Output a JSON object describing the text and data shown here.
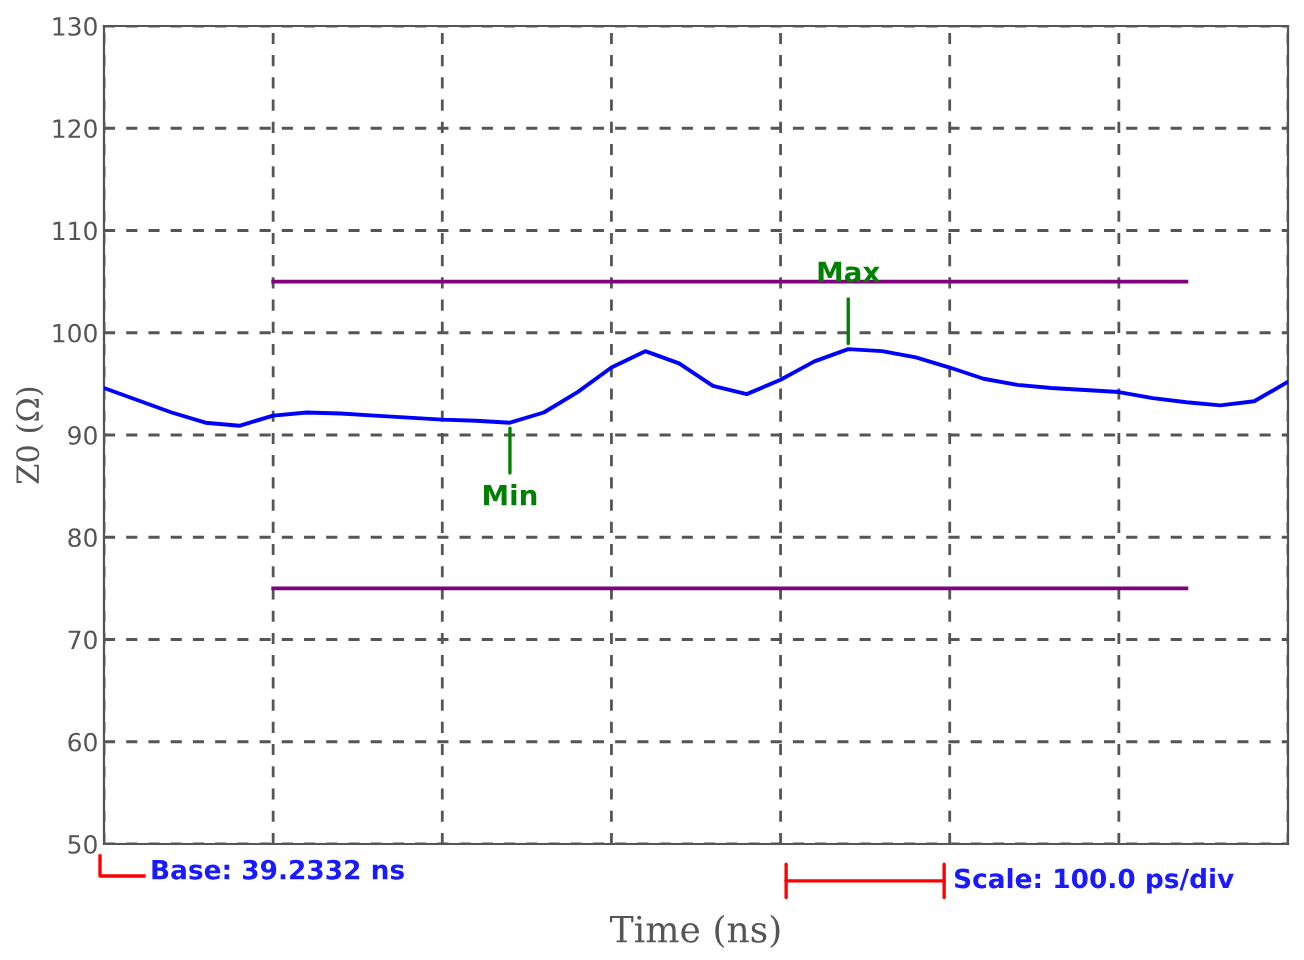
{
  "chart_data": {
    "type": "line",
    "xlabel": "Time (ns)",
    "ylabel": "Z0 (Ω)",
    "categories": [
      null,
      null,
      null,
      null,
      null,
      null,
      null,
      null,
      null,
      null,
      null,
      null,
      null,
      null,
      null,
      null,
      null,
      null,
      null,
      null,
      null,
      null,
      null,
      null,
      null,
      null,
      null,
      null,
      null,
      null,
      null,
      null,
      null,
      null,
      null,
      null
    ],
    "series": [
      {
        "color": "#0000ff",
        "values": [
          94.6,
          93.4,
          92.2,
          91.2,
          90.9,
          91.9,
          92.2,
          92.1,
          91.9,
          91.7,
          91.5,
          91.4,
          91.2,
          92.2,
          94.2,
          96.6,
          98.2,
          97.0,
          94.8,
          94.0,
          95.4,
          97.2,
          98.4,
          98.2,
          97.6,
          96.6,
          95.5,
          94.9,
          94.6,
          94.4,
          94.2,
          93.6,
          93.2,
          92.9,
          93.3,
          95.2
        ]
      },
      {
        "color": "#800080",
        "values": [
          null,
          null,
          null,
          null,
          null,
          105,
          105,
          105,
          105,
          105,
          105,
          105,
          105,
          105,
          105,
          105,
          105,
          105,
          105,
          105,
          105,
          105,
          105,
          105,
          105,
          105,
          105,
          105,
          105,
          105,
          105,
          105,
          105,
          null,
          null,
          null
        ]
      },
      {
        "color": "#800080",
        "values": [
          null,
          null,
          null,
          null,
          null,
          75,
          75,
          75,
          75,
          75,
          75,
          75,
          75,
          75,
          75,
          75,
          75,
          75,
          75,
          75,
          75,
          75,
          75,
          75,
          75,
          75,
          75,
          75,
          75,
          75,
          75,
          75,
          75,
          null,
          null,
          null
        ]
      }
    ],
    "annotations": [
      {
        "text": "Max",
        "y": 98.4
      },
      {
        "text": "Min",
        "y": 91.2
      },
      "Base: 39.2332 ns",
      "Scale: 100.0 ps/div"
    ],
    "ylim": [
      50,
      130
    ],
    "yticks": [
      50,
      60,
      70,
      80,
      90,
      100,
      110,
      120,
      130
    ],
    "grid": true,
    "legend": false,
    "marker": "none",
    "line_style": "solid"
  }
}
